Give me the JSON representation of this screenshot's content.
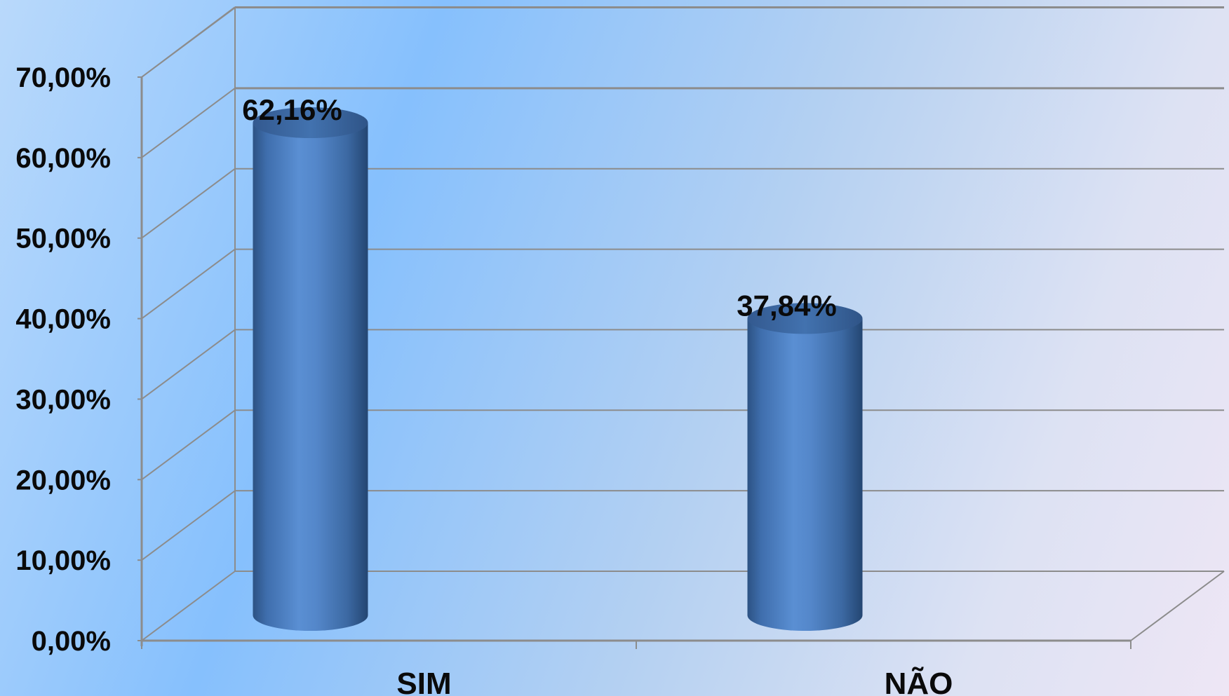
{
  "chart_data": {
    "type": "bar",
    "style": "3d-cylinder",
    "categories": [
      "SIM",
      "NÃO"
    ],
    "values": [
      62.16,
      37.84
    ],
    "data_labels": [
      "62,16%",
      "37,84%"
    ],
    "yticks": [
      0,
      10,
      20,
      30,
      40,
      50,
      60,
      70
    ],
    "ytick_labels": [
      "0,00%",
      "10,00%",
      "20,00%",
      "30,00%",
      "40,00%",
      "50,00%",
      "60,00%",
      "70,00%"
    ],
    "ylim": [
      0,
      70
    ],
    "grid": true,
    "legend": "none",
    "title": "",
    "xlabel": "",
    "ylabel": "",
    "colors": {
      "bar": "#4a7fc0",
      "bar_dark": "#2c5283",
      "bar_top": "#3d6ca6",
      "grid": "#8c8c8c"
    }
  }
}
